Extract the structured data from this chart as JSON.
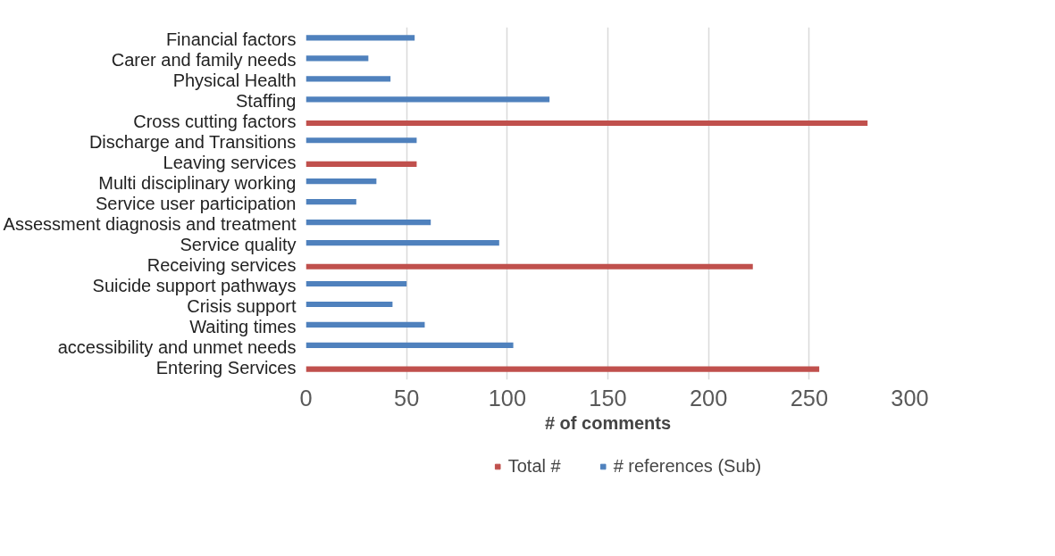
{
  "chart_data": {
    "type": "bar",
    "orientation": "horizontal",
    "xlabel": "# of comments",
    "categories": [
      "Financial factors",
      "Carer and family needs",
      "Physical Health",
      "Staffing",
      "Cross cutting factors",
      "Discharge and Transitions",
      "Leaving services",
      "Multi disciplinary working",
      "Service user participation",
      "Assessment diagnosis and treatment",
      "Service quality",
      "Receiving services",
      "Suicide support pathways",
      "Crisis support",
      "Waiting times",
      "accessibility and unmet needs",
      "Entering Services"
    ],
    "series": [
      {
        "name": "Total #",
        "color": "#c0504d",
        "values": [
          null,
          null,
          null,
          null,
          279,
          null,
          55,
          null,
          null,
          null,
          null,
          222,
          null,
          null,
          null,
          null,
          255
        ]
      },
      {
        "name": "# references (Sub)",
        "color": "#4f81bd",
        "values": [
          54,
          31,
          42,
          121,
          null,
          55,
          null,
          35,
          25,
          62,
          96,
          null,
          50,
          43,
          59,
          103,
          null
        ]
      }
    ],
    "xlim": [
      0,
      300
    ],
    "xticks": [
      0,
      50,
      100,
      150,
      200,
      250,
      300
    ],
    "grid": "x",
    "legend": "bottom"
  }
}
